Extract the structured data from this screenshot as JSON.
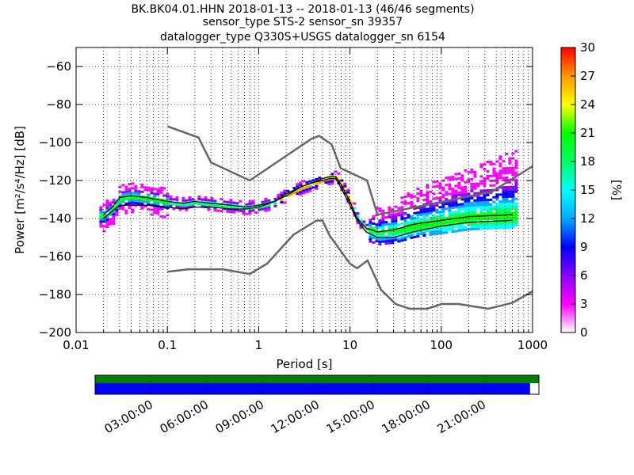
{
  "chart_data": {
    "type": "heatmap",
    "title_lines": [
      "BK.BK04.01.HHN   2018-01-13 -- 2018-01-13  (46/46 segments)",
      "sensor_type STS-2 sensor_sn 39357",
      "datalogger_type Q330S+USGS datalogger_sn 6154"
    ],
    "xlabel": "Period [s]",
    "ylabel": "Power [m²/s⁴/Hz] [dB]",
    "x_scale": "log",
    "xlim": [
      0.01,
      1000
    ],
    "ylim": [
      -200,
      -50
    ],
    "x_ticks": [
      0.01,
      0.1,
      1,
      10,
      100,
      1000
    ],
    "x_tick_labels": [
      "0.01",
      "0.1",
      "1",
      "10",
      "100",
      "1000"
    ],
    "y_ticks": [
      -60,
      -80,
      -100,
      -120,
      -140,
      -160,
      -180,
      -200
    ],
    "y_tick_labels": [
      "−60",
      "−80",
      "−100",
      "−120",
      "−140",
      "−160",
      "−180",
      "−200"
    ],
    "grid": "dotted",
    "colorbar": {
      "label": "[%]",
      "range": [
        0,
        30
      ],
      "ticks": [
        0,
        3,
        6,
        9,
        12,
        15,
        18,
        21,
        24,
        27,
        30
      ],
      "tick_labels": [
        "0",
        "3",
        "6",
        "9",
        "12",
        "15",
        "18",
        "21",
        "24",
        "27",
        "30"
      ],
      "colors": [
        "#ffffff",
        "#ff00ff",
        "#8a00ff",
        "#0000ff",
        "#00aaff",
        "#00ffff",
        "#00ff66",
        "#00ff00",
        "#ffff00",
        "#ff9900",
        "#ff0000"
      ]
    },
    "nhnm": {
      "x": [
        0.1,
        0.22,
        0.3,
        0.8,
        3.8,
        4.6,
        6.3,
        7.9,
        15.4,
        20,
        354.8,
        1000
      ],
      "y": [
        -91.5,
        -97.4,
        -110.5,
        -120,
        -98,
        -96.5,
        -101,
        -113.5,
        -120,
        -138,
        -126,
        -112.5
      ]
    },
    "nlnm": {
      "x": [
        0.1,
        0.17,
        0.4,
        0.8,
        1.24,
        2.4,
        4.3,
        5,
        6,
        10,
        12,
        15.6,
        21.9,
        31.6,
        45,
        70,
        101,
        154,
        328,
        600,
        1000
      ],
      "y": [
        -168,
        -166.7,
        -166.7,
        -169.2,
        -163.7,
        -148.6,
        -141.1,
        -141.1,
        -149,
        -163.8,
        -166.2,
        -162.1,
        -177.5,
        -185,
        -187.5,
        -187.5,
        -185,
        -185,
        -187.5,
        -184.4,
        -178.3
      ]
    },
    "mode_curve": {
      "x": [
        0.02,
        0.025,
        0.03,
        0.04,
        0.06,
        0.1,
        0.15,
        0.2,
        0.3,
        0.5,
        0.7,
        1,
        1.5,
        2,
        3,
        4,
        5,
        6,
        7,
        8,
        10,
        12,
        15,
        20,
        30,
        50,
        100,
        200,
        600
      ],
      "y": [
        -138,
        -134,
        -129,
        -128,
        -129,
        -131,
        -132,
        -131,
        -132,
        -133,
        -134,
        -133,
        -131,
        -127,
        -123,
        -121,
        -119,
        -118,
        -118,
        -122,
        -131,
        -140,
        -145,
        -147,
        -146,
        -143,
        -141,
        -139,
        -138
      ]
    },
    "mean_curve": {
      "x": [
        0.02,
        0.025,
        0.03,
        0.04,
        0.06,
        0.1,
        0.15,
        0.2,
        0.3,
        0.5,
        0.7,
        1,
        1.5,
        2,
        3,
        4,
        5,
        6,
        7,
        8,
        10,
        12,
        15,
        20,
        30,
        50,
        100,
        200,
        600
      ],
      "y": [
        -140,
        -136,
        -133,
        -133,
        -133,
        -134,
        -135,
        -134,
        -134,
        -135,
        -135,
        -134,
        -131,
        -128,
        -123,
        -121,
        -120,
        -119,
        -119,
        -124,
        -133,
        -141,
        -147,
        -150,
        -150,
        -147,
        -144,
        -142,
        -141
      ]
    },
    "time_axis": {
      "tick_labels": [
        "03:00:00",
        "06:00:00",
        "09:00:00",
        "12:00:00",
        "15:00:00",
        "18:00:00",
        "21:00:00"
      ],
      "data_coverage_fraction": 1.0,
      "psd_coverage_fraction": 0.98,
      "data_color": "#008000",
      "psd_color": "#0000ff"
    }
  }
}
